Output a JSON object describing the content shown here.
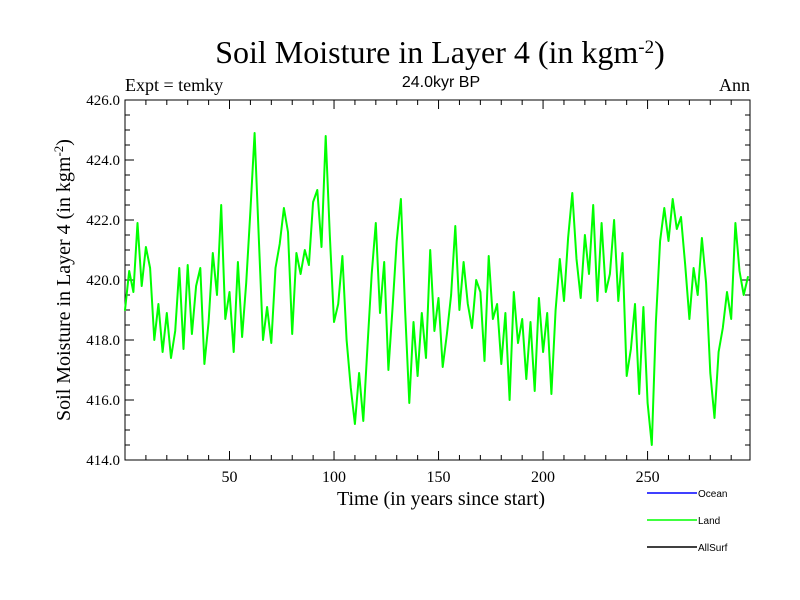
{
  "chart_data": {
    "type": "line",
    "title_main": "Soil Moisture in Layer 4 (in kgm",
    "title_sup": "-2",
    "title_close": ")",
    "subtitle": "24.0kyr BP",
    "left_label": "Expt = temky",
    "right_label": "Ann",
    "xlabel": "Time (in years since start)",
    "ylabel_main": "Soil Moisture in Layer 4 (in kgm",
    "ylabel_sup": "-2",
    "ylabel_close": ")",
    "xlim": [
      0,
      299
    ],
    "ylim": [
      414.0,
      426.0
    ],
    "x_ticks": [
      50,
      100,
      150,
      200,
      250
    ],
    "x_tick_labels": [
      "50",
      "100",
      "150",
      "200",
      "250"
    ],
    "y_ticks": [
      414.0,
      416.0,
      418.0,
      420.0,
      422.0,
      424.0,
      426.0
    ],
    "y_tick_labels": [
      "414.0",
      "416.0",
      "418.0",
      "420.0",
      "422.0",
      "424.0",
      "426.0"
    ],
    "legend": [
      {
        "name": "Ocean",
        "color": "#0000ff"
      },
      {
        "name": "Land",
        "color": "#00ff00"
      },
      {
        "name": "AllSurf",
        "color": "#000000"
      }
    ],
    "series": [
      {
        "name": "Land",
        "color": "#00ff00",
        "x": [
          0,
          2,
          4,
          6,
          8,
          10,
          12,
          14,
          16,
          18,
          20,
          22,
          24,
          26,
          28,
          30,
          32,
          34,
          36,
          38,
          40,
          42,
          44,
          46,
          48,
          50,
          52,
          54,
          56,
          58,
          60,
          62,
          64,
          66,
          68,
          70,
          72,
          74,
          76,
          78,
          80,
          82,
          84,
          86,
          88,
          90,
          92,
          94,
          96,
          98,
          100,
          102,
          104,
          106,
          108,
          110,
          112,
          114,
          116,
          118,
          120,
          122,
          124,
          126,
          128,
          130,
          132,
          134,
          136,
          138,
          140,
          142,
          144,
          146,
          148,
          150,
          152,
          154,
          156,
          158,
          160,
          162,
          164,
          166,
          168,
          170,
          172,
          174,
          176,
          178,
          180,
          182,
          184,
          186,
          188,
          190,
          192,
          194,
          196,
          198,
          200,
          202,
          204,
          206,
          208,
          210,
          212,
          214,
          216,
          218,
          220,
          222,
          224,
          226,
          228,
          230,
          232,
          234,
          236,
          238,
          240,
          242,
          244,
          246,
          248,
          250,
          252,
          254,
          256,
          258,
          260,
          262,
          264,
          266,
          268,
          270,
          272,
          274,
          276,
          278,
          280,
          282,
          284,
          286,
          288,
          290,
          292,
          294,
          296,
          298
        ],
        "values": [
          419.0,
          420.3,
          419.6,
          421.9,
          419.8,
          421.1,
          420.4,
          418.0,
          419.2,
          417.6,
          418.9,
          417.4,
          418.3,
          420.4,
          417.7,
          420.5,
          418.2,
          419.8,
          420.4,
          417.2,
          418.6,
          420.9,
          419.5,
          422.5,
          418.7,
          419.6,
          417.6,
          420.6,
          418.1,
          419.9,
          422.3,
          424.9,
          421.4,
          418.0,
          419.1,
          417.9,
          420.4,
          421.2,
          422.4,
          421.6,
          418.2,
          420.9,
          420.2,
          421.0,
          420.5,
          422.6,
          423.0,
          421.1,
          424.8,
          421.5,
          418.6,
          419.2,
          420.8,
          418.0,
          416.4,
          415.2,
          416.9,
          415.3,
          417.8,
          420.2,
          421.9,
          418.9,
          420.6,
          417.0,
          419.1,
          421.3,
          422.7,
          419.0,
          415.9,
          418.6,
          416.8,
          418.9,
          417.4,
          421.0,
          418.3,
          419.4,
          417.1,
          418.2,
          419.5,
          421.8,
          419.0,
          420.6,
          419.2,
          418.4,
          420.0,
          419.6,
          417.3,
          420.8,
          418.7,
          419.2,
          417.2,
          418.9,
          416.0,
          419.6,
          417.9,
          418.7,
          416.7,
          418.6,
          416.3,
          419.4,
          417.6,
          418.9,
          416.2,
          419.0,
          420.7,
          419.3,
          421.4,
          422.9,
          420.7,
          419.4,
          421.5,
          420.2,
          422.5,
          419.3,
          421.9,
          419.6,
          420.2,
          422.0,
          419.3,
          420.9,
          416.8,
          417.7,
          419.2,
          416.2,
          419.1,
          415.9,
          414.5,
          418.6,
          421.3,
          422.4,
          421.3,
          422.7,
          421.7,
          422.1,
          420.5,
          418.7,
          420.4,
          419.5,
          421.4,
          419.9,
          416.9,
          415.4,
          417.6,
          418.4,
          419.6,
          418.7,
          421.9,
          420.3,
          419.5,
          420.1
        ]
      }
    ]
  }
}
